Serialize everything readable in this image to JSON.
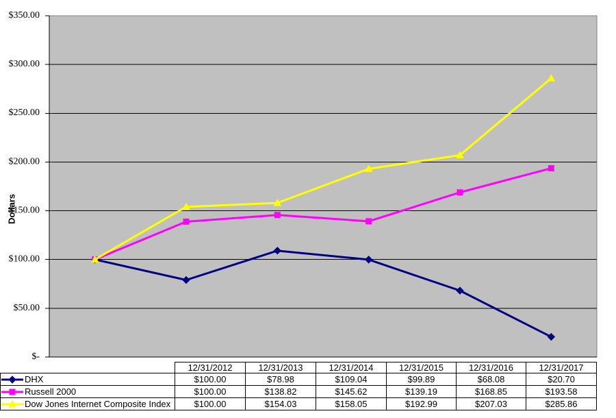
{
  "chart_data": {
    "type": "line",
    "x": [
      "12/31/2012",
      "12/31/2013",
      "12/31/2014",
      "12/31/2015",
      "12/31/2016",
      "12/31/2017"
    ],
    "series": [
      {
        "name": "DHX",
        "color": "#000080",
        "marker": "diamond",
        "values": [
          100.0,
          78.98,
          109.04,
          99.89,
          68.08,
          20.7
        ]
      },
      {
        "name": "Russell 2000",
        "color": "#FF00FF",
        "marker": "square",
        "values": [
          100.0,
          138.82,
          145.62,
          139.19,
          168.85,
          193.58
        ]
      },
      {
        "name": "Dow Jones Internet Composite Index",
        "color": "#FFFF00",
        "marker": "triangle",
        "values": [
          100.0,
          154.03,
          158.05,
          192.99,
          207.03,
          285.86
        ]
      }
    ],
    "ylabel": "Dollars",
    "ylim": [
      0,
      350
    ],
    "ytick_step": 50,
    "ytick_labels": [
      "$-",
      "$50.00",
      "$100.00",
      "$150.00",
      "$200.00",
      "$250.00",
      "$300.00",
      "$350.00"
    ],
    "plot_bg": "#C0C0C0",
    "grid": true,
    "gridline_color": "#000000",
    "legend_position": "table-left-column"
  },
  "table": {
    "dates": [
      "12/31/2012",
      "12/31/2013",
      "12/31/2014",
      "12/31/2015",
      "12/31/2016",
      "12/31/2017"
    ],
    "rows": [
      {
        "label": "DHX",
        "values": [
          "$100.00",
          "$78.98",
          "$109.04",
          "$99.89",
          "$68.08",
          "$20.70"
        ]
      },
      {
        "label": "Russell 2000",
        "values": [
          "$100.00",
          "$138.82",
          "$145.62",
          "$139.19",
          "$168.85",
          "$193.58"
        ]
      },
      {
        "label": "Dow Jones Internet Composite Index",
        "values": [
          "$100.00",
          "$154.03",
          "$158.05",
          "$192.99",
          "$207.03",
          "$285.86"
        ]
      }
    ]
  }
}
